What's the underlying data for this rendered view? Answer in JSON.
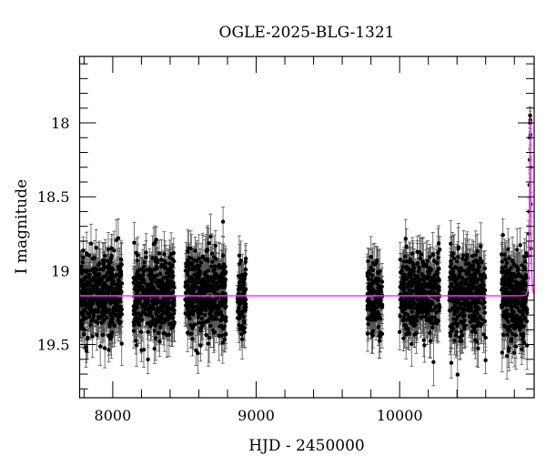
{
  "chart_data": {
    "type": "scatter",
    "title": "OGLE-2025-BLG-1321",
    "xlabel": "HJD - 2450000",
    "ylabel": "I magnitude",
    "xlim": [
      7769,
      10938
    ],
    "ylim": [
      19.86,
      17.55
    ],
    "y_inverted": true,
    "grid": false,
    "x_ticks": [
      8000,
      9000,
      10000
    ],
    "x_tick_labels": [
      "8000",
      "9000",
      "10000"
    ],
    "x_minor_step": 200,
    "y_ticks": [
      18,
      18.5,
      19,
      19.5
    ],
    "y_tick_labels": [
      "18",
      "18.5",
      "19",
      "19.5"
    ],
    "y_minor_step": 0.1,
    "colors": {
      "points": "#000000",
      "error_bars": "#555555",
      "model": "#ff33ff"
    },
    "observing_seasons": [
      {
        "start": 7775,
        "end": 8065,
        "mean_mag": 19.17,
        "scatter": 0.14,
        "typical_error": 0.11,
        "n": 420
      },
      {
        "start": 8145,
        "end": 8430,
        "mean_mag": 19.17,
        "scatter": 0.14,
        "typical_error": 0.11,
        "n": 420
      },
      {
        "start": 8505,
        "end": 8790,
        "mean_mag": 19.17,
        "scatter": 0.14,
        "typical_error": 0.12,
        "n": 420
      },
      {
        "start": 8870,
        "end": 8930,
        "mean_mag": 19.2,
        "scatter": 0.13,
        "typical_error": 0.1,
        "n": 90
      },
      {
        "start": 9775,
        "end": 9880,
        "mean_mag": 19.17,
        "scatter": 0.13,
        "typical_error": 0.11,
        "n": 150
      },
      {
        "start": 10000,
        "end": 10280,
        "mean_mag": 19.17,
        "scatter": 0.14,
        "typical_error": 0.12,
        "n": 380
      },
      {
        "start": 10345,
        "end": 10600,
        "mean_mag": 19.17,
        "scatter": 0.14,
        "typical_error": 0.12,
        "n": 380
      },
      {
        "start": 10710,
        "end": 10890,
        "mean_mag": 19.17,
        "scatter": 0.14,
        "typical_error": 0.12,
        "n": 320
      }
    ],
    "event_points": [
      {
        "x": 10894,
        "y": 19.05,
        "err": 0.1
      },
      {
        "x": 10898,
        "y": 18.9,
        "err": 0.1
      },
      {
        "x": 10901,
        "y": 18.75,
        "err": 0.09
      },
      {
        "x": 10903,
        "y": 18.6,
        "err": 0.09
      },
      {
        "x": 10905,
        "y": 18.42,
        "err": 0.08
      },
      {
        "x": 10907,
        "y": 18.25,
        "err": 0.07
      },
      {
        "x": 10908,
        "y": 18.1,
        "err": 0.07
      },
      {
        "x": 10909,
        "y": 18.0,
        "err": 0.06
      },
      {
        "x": 10910,
        "y": 17.95,
        "err": 0.06
      },
      {
        "x": 10911,
        "y": 17.98,
        "err": 0.06
      },
      {
        "x": 10912,
        "y": 18.08,
        "err": 0.07
      },
      {
        "x": 10913,
        "y": 18.3,
        "err": 0.07
      },
      {
        "x": 10914,
        "y": 18.55,
        "err": 0.08
      },
      {
        "x": 10916,
        "y": 18.85,
        "err": 0.1
      }
    ],
    "model": {
      "type": "point-lens",
      "t0": 10910,
      "tE": 8,
      "u0": 0.34,
      "baseline_mag": 19.17
    }
  }
}
